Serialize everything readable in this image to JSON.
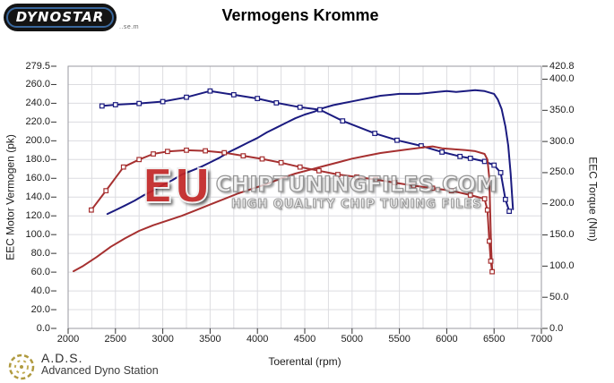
{
  "header": {
    "title": "Vermogens Kromme",
    "logo_text": "DYNOSTAR",
    "logo_subtext": "..se.m"
  },
  "watermark": {
    "eu": "EU",
    "line1": "CHIPTUNINGFILES.COM",
    "line2": "HIGH QUALITY CHIP TUNING FILES"
  },
  "footer": {
    "ads_acronym": "A.D.S.",
    "ads_name": "Advanced Dyno Station"
  },
  "chart_data": {
    "type": "line",
    "title": "Vermogens Kromme",
    "xlabel": "Toerental (rpm)",
    "ylabel_left": "EEC Motor Vermogen (pk)",
    "ylabel_right": "EEC Torque (Nm)",
    "x_range": [
      2000,
      7000
    ],
    "y_left_range": [
      0,
      279.5
    ],
    "y_right_range": [
      0,
      420.8
    ],
    "x_ticks": [
      2000,
      2500,
      3000,
      3500,
      4000,
      4500,
      5000,
      5500,
      6000,
      6500,
      7000
    ],
    "y_left_ticks": [
      "279.5",
      "260.0",
      "240.0",
      "220.0",
      "200.0",
      "180.0",
      "160.0",
      "140.0",
      "120.0",
      "100.0",
      "80.0",
      "60.0",
      "40.0",
      "20.0",
      "0.0"
    ],
    "y_right_ticks": [
      "420.8",
      "400.0",
      "350.0",
      "300.0",
      "250.0",
      "200.0",
      "150.0",
      "100.0",
      "50.0",
      "0.0"
    ],
    "grid": {
      "x_step": 250,
      "y_left_step": 20,
      "grid_on": true
    },
    "legend": "none",
    "colors": {
      "tuned": "#1b1b80",
      "original": "#a63030",
      "grid": "#dcdce0",
      "axis": "#9a9aa0"
    },
    "series": [
      {
        "name": "power-tuned",
        "axis": "left",
        "unit": "pk",
        "color": "#1b1b80",
        "marker": false,
        "points": [
          [
            2415,
            122
          ],
          [
            2500,
            126
          ],
          [
            2600,
            131
          ],
          [
            2700,
            136
          ],
          [
            2800,
            142
          ],
          [
            2900,
            147
          ],
          [
            3000,
            153
          ],
          [
            3100,
            158
          ],
          [
            3200,
            164
          ],
          [
            3300,
            168
          ],
          [
            3400,
            172
          ],
          [
            3500,
            177
          ],
          [
            3600,
            182
          ],
          [
            3700,
            188
          ],
          [
            3800,
            193
          ],
          [
            3900,
            198
          ],
          [
            4000,
            203
          ],
          [
            4100,
            209
          ],
          [
            4200,
            214
          ],
          [
            4300,
            219
          ],
          [
            4400,
            224
          ],
          [
            4500,
            228
          ],
          [
            4600,
            231
          ],
          [
            4700,
            235
          ],
          [
            4800,
            238
          ],
          [
            4900,
            240
          ],
          [
            5000,
            242
          ],
          [
            5100,
            244
          ],
          [
            5200,
            246
          ],
          [
            5300,
            248
          ],
          [
            5400,
            249
          ],
          [
            5500,
            250
          ],
          [
            5600,
            250
          ],
          [
            5700,
            250
          ],
          [
            5800,
            251
          ],
          [
            5900,
            252
          ],
          [
            6000,
            253
          ],
          [
            6100,
            252
          ],
          [
            6200,
            253
          ],
          [
            6300,
            254
          ],
          [
            6400,
            253
          ],
          [
            6500,
            250
          ],
          [
            6540,
            244
          ],
          [
            6580,
            234
          ],
          [
            6620,
            215
          ],
          [
            6650,
            195
          ],
          [
            6675,
            165
          ],
          [
            6700,
            127
          ]
        ]
      },
      {
        "name": "torque-tuned",
        "axis": "right",
        "unit": "Nm",
        "color": "#1b1b80",
        "marker": true,
        "points": [
          [
            2358,
            357
          ],
          [
            2500,
            359
          ],
          [
            2750,
            361
          ],
          [
            3000,
            364
          ],
          [
            3250,
            371
          ],
          [
            3500,
            381
          ],
          [
            3750,
            375
          ],
          [
            4000,
            369
          ],
          [
            4200,
            362
          ],
          [
            4450,
            355
          ],
          [
            4660,
            351
          ],
          [
            4900,
            333
          ],
          [
            5240,
            313
          ],
          [
            5475,
            302
          ],
          [
            5730,
            293
          ],
          [
            5950,
            283
          ],
          [
            6140,
            276
          ],
          [
            6250,
            273
          ],
          [
            6400,
            268
          ],
          [
            6500,
            262
          ],
          [
            6570,
            250
          ],
          [
            6620,
            207
          ],
          [
            6660,
            188
          ]
        ]
      },
      {
        "name": "power-original",
        "axis": "left",
        "unit": "pk",
        "color": "#a63030",
        "marker": false,
        "points": [
          [
            2057,
            61
          ],
          [
            2150,
            66
          ],
          [
            2300,
            76
          ],
          [
            2450,
            87
          ],
          [
            2600,
            96
          ],
          [
            2750,
            104
          ],
          [
            2900,
            110
          ],
          [
            3050,
            115
          ],
          [
            3200,
            120
          ],
          [
            3350,
            126
          ],
          [
            3500,
            132
          ],
          [
            3650,
            138
          ],
          [
            3800,
            144
          ],
          [
            3950,
            149
          ],
          [
            4100,
            154
          ],
          [
            4250,
            160
          ],
          [
            4400,
            165
          ],
          [
            4550,
            169
          ],
          [
            4700,
            173
          ],
          [
            4850,
            177
          ],
          [
            5000,
            181
          ],
          [
            5150,
            184
          ],
          [
            5300,
            187
          ],
          [
            5450,
            189
          ],
          [
            5600,
            191
          ],
          [
            5750,
            193
          ],
          [
            5850,
            194
          ],
          [
            5950,
            192
          ],
          [
            6075,
            191
          ],
          [
            6200,
            190
          ],
          [
            6300,
            189
          ],
          [
            6400,
            186
          ],
          [
            6430,
            180
          ],
          [
            6450,
            160
          ],
          [
            6460,
            120
          ],
          [
            6470,
            85
          ],
          [
            6480,
            62
          ]
        ]
      },
      {
        "name": "torque-original",
        "axis": "right",
        "unit": "Nm",
        "color": "#a63030",
        "marker": true,
        "points": [
          [
            2245,
            190
          ],
          [
            2400,
            221
          ],
          [
            2585,
            259
          ],
          [
            2750,
            271
          ],
          [
            2900,
            280
          ],
          [
            3050,
            284
          ],
          [
            3250,
            286
          ],
          [
            3450,
            285
          ],
          [
            3650,
            282
          ],
          [
            3850,
            277
          ],
          [
            4050,
            272
          ],
          [
            4250,
            266
          ],
          [
            4450,
            259
          ],
          [
            4650,
            253
          ],
          [
            4850,
            247
          ],
          [
            5050,
            243
          ],
          [
            5250,
            239
          ],
          [
            5450,
            234
          ],
          [
            5650,
            229
          ],
          [
            5850,
            225
          ],
          [
            6050,
            221
          ],
          [
            6250,
            214
          ],
          [
            6400,
            208
          ],
          [
            6430,
            190
          ],
          [
            6450,
            140
          ],
          [
            6465,
            108
          ],
          [
            6480,
            91
          ]
        ]
      }
    ],
    "plot_notes": "tuned run in dark blue, original run in red; torque curves carry open square markers"
  }
}
